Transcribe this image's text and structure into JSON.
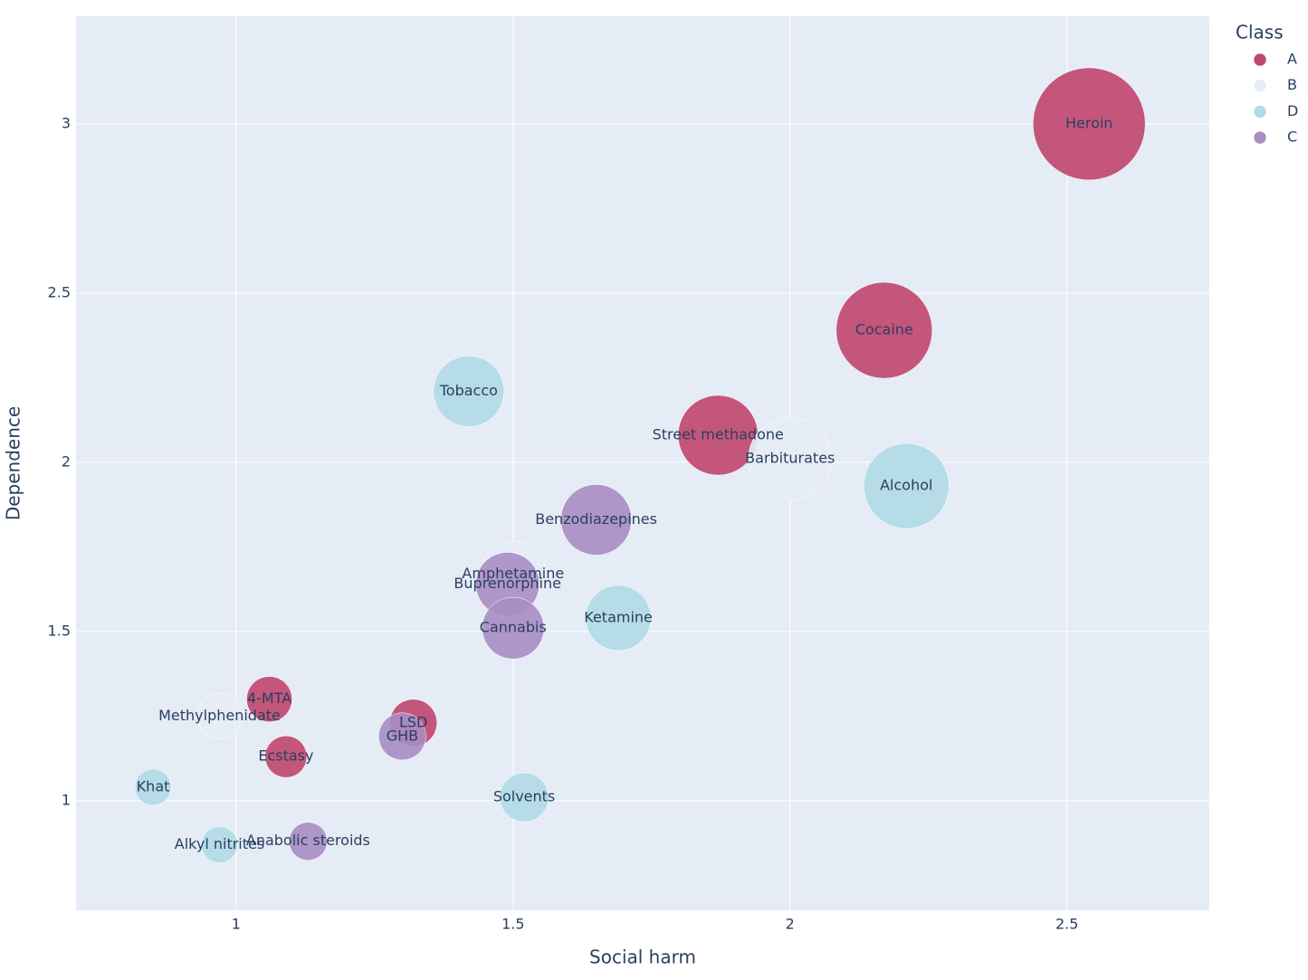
{
  "chart_data": {
    "type": "scatter",
    "x_label": "Social harm",
    "y_label": "Dependence",
    "legend_title": "Class",
    "xlim": [
      0.711,
      2.757
    ],
    "ylim": [
      0.676,
      3.318
    ],
    "xticks": [
      1,
      1.5,
      2,
      2.5
    ],
    "yticks": [
      1,
      1.5,
      2,
      2.5,
      3
    ],
    "grid": true,
    "legend_position": "right",
    "series": [
      {
        "name": "A",
        "color": "#c0466e",
        "labels": [
          "Heroin",
          "Cocaine",
          "Street methadone",
          "4-MTA",
          "LSD",
          "Ecstasy"
        ],
        "x": [
          2.54,
          2.17,
          1.87,
          1.06,
          1.32,
          1.09
        ],
        "values": [
          3.0,
          2.39,
          2.08,
          1.3,
          1.23,
          1.13
        ],
        "sizes": [
          38.4,
          28.1,
          19.4,
          6.3,
          6.8,
          5.3
        ]
      },
      {
        "name": "B",
        "color": "#e6edf7",
        "labels": [
          "Barbiturates",
          "Amphetamine",
          "Methylphenidate"
        ],
        "x": [
          2.0,
          1.5,
          0.97
        ],
        "values": [
          2.01,
          1.67,
          1.25
        ],
        "sizes": [
          21.2,
          13.0,
          6.3
        ]
      },
      {
        "name": "D",
        "color": "#b0dae6",
        "labels": [
          "Tobacco",
          "Alcohol",
          "Ketamine",
          "Solvents",
          "Khat",
          "Alkyl nitrites"
        ],
        "x": [
          1.42,
          2.21,
          1.69,
          1.52,
          0.85,
          0.97
        ],
        "values": [
          2.21,
          1.93,
          1.54,
          1.01,
          1.04,
          0.87
        ],
        "sizes": [
          15.2,
          22.1,
          13.0,
          7.3,
          4.0,
          4.0
        ]
      },
      {
        "name": "C",
        "color": "#a98dc3",
        "labels": [
          "Benzodiazepines",
          "Buprenorphine",
          "Cannabis",
          "GHB",
          "Anabolic steroids"
        ],
        "x": [
          1.65,
          1.49,
          1.5,
          1.3,
          1.13
        ],
        "values": [
          1.83,
          1.64,
          1.51,
          1.19,
          0.88
        ],
        "sizes": [
          15.2,
          12.3,
          11.6,
          6.8,
          4.4
        ]
      }
    ]
  }
}
